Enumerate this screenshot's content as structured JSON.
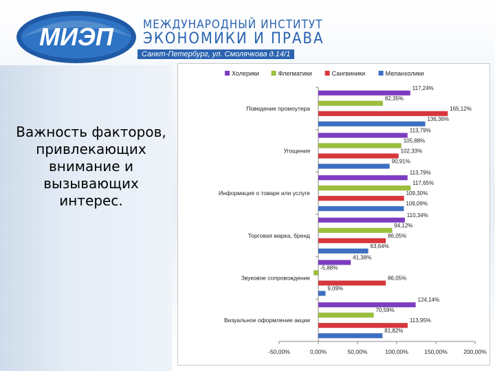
{
  "header": {
    "logo_text": "МИЭП",
    "institute_line1": "МЕЖДУНАРОДНЫЙ ИНСТИТУТ",
    "institute_line2": "ЭКОНОМИКИ И ПРАВА",
    "address": "Санкт-Петербург, ул. Смолячкова д.14/1"
  },
  "slide": {
    "title": "Важность факторов, привлекающих внимание и вызывающих интерес."
  },
  "colors": {
    "brand": "#2a63b0",
    "series": [
      "#7d3cc2",
      "#9bbf3c",
      "#d9363b",
      "#3c6fc4"
    ]
  },
  "chart_data": {
    "type": "bar",
    "orientation": "horizontal",
    "categories": [
      "Поведение промоутера",
      "Угощения",
      "Информация о товаре или услуге",
      "Торговая марка, бренд",
      "Звуковое сопровождение",
      "Визуальное оформление акции"
    ],
    "series": [
      {
        "name": "Холерики",
        "values": [
          117.24,
          113.79,
          113.79,
          110.34,
          41.38,
          124.14
        ],
        "labels": [
          "117,24%",
          "113,79%",
          "113,79%",
          "110,34%",
          "41,38%",
          "124,14%"
        ]
      },
      {
        "name": "Флегматики",
        "values": [
          82.35,
          105.88,
          117.65,
          94.12,
          -5.88,
          70.59
        ],
        "labels": [
          "82,35%",
          "105,88%",
          "117,65%",
          "94,12%",
          "-5,88%",
          "70,59%"
        ]
      },
      {
        "name": "Сангвиники",
        "values": [
          165.12,
          102.33,
          109.3,
          86.05,
          86.05,
          113.95
        ],
        "labels": [
          "165,12%",
          "102,33%",
          "109,30%",
          "86,05%",
          "86,05%",
          "113,95%"
        ]
      },
      {
        "name": "Меланхолики",
        "values": [
          136.36,
          90.91,
          109.09,
          63.64,
          9.09,
          81.82
        ],
        "labels": [
          "136,36%",
          "90,91%",
          "109,09%",
          "63,64%",
          "9,09%",
          "81,82%"
        ]
      }
    ],
    "xlim": [
      -50,
      200
    ],
    "xticks": [
      -50,
      0,
      50,
      100,
      150,
      200
    ],
    "xtick_labels": [
      "-50,00%",
      "0,00%",
      "50,00%",
      "100,00%",
      "150,00%",
      "200,00%"
    ],
    "legend_position": "top",
    "grid": false
  }
}
